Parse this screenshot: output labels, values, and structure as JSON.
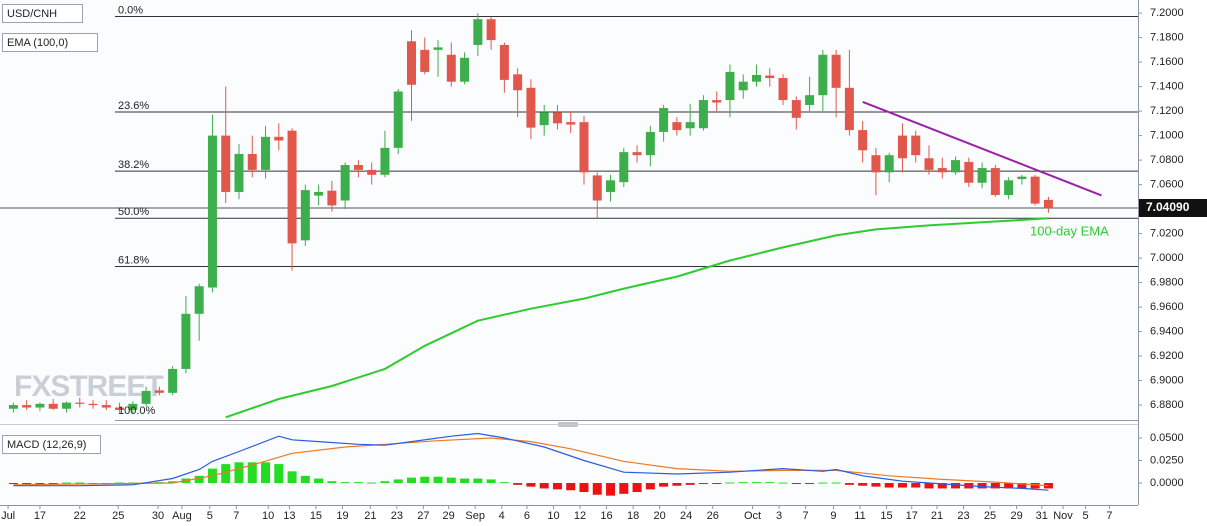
{
  "chart_data": [
    {
      "type": "candlestick",
      "title": "USD/CNH",
      "indicator_label": "EMA (100,0)",
      "watermark": "FXSTREET",
      "xlim": [
        -1.01,
        84.75
      ],
      "ylim": [
        6.867,
        7.2107
      ],
      "yticks": [
        {
          "value": 6.88,
          "label": "6.8800"
        },
        {
          "value": 6.9,
          "label": "6.9000"
        },
        {
          "value": 6.92,
          "label": "6.9200"
        },
        {
          "value": 6.94,
          "label": "6.9400"
        },
        {
          "value": 6.96,
          "label": "6.9600"
        },
        {
          "value": 6.98,
          "label": "6.9800"
        },
        {
          "value": 7.0,
          "label": "7.0000"
        },
        {
          "value": 7.02,
          "label": "7.0200"
        },
        {
          "value": 7.04,
          "label": "7.0400"
        },
        {
          "value": 7.06,
          "label": "7.0600"
        },
        {
          "value": 7.08,
          "label": "7.0800"
        },
        {
          "value": 7.1,
          "label": "7.1000"
        },
        {
          "value": 7.12,
          "label": "7.1200"
        },
        {
          "value": 7.14,
          "label": "7.1400"
        },
        {
          "value": 7.16,
          "label": "7.1600"
        },
        {
          "value": 7.18,
          "label": "7.1800"
        },
        {
          "value": 7.2,
          "label": "7.2000"
        }
      ],
      "up_color": "#3dae4c",
      "down_color": "#e2574c",
      "candles": {
        "open": [
          6.877,
          6.88,
          6.878,
          6.881,
          6.877,
          6.882,
          6.881,
          6.88,
          6.878,
          6.876,
          6.881,
          6.892,
          6.89,
          6.9095,
          6.9545,
          6.976,
          7.1,
          7.054,
          7.085,
          7.072,
          7.099,
          7.104,
          7.0145,
          7.051,
          7.055,
          7.047,
          7.076,
          7.072,
          7.068,
          7.09,
          7.177,
          7.17,
          7.17,
          7.166,
          7.144,
          7.174,
          7.195,
          7.174,
          7.15,
          7.139,
          7.1085,
          7.119,
          7.111,
          7.111,
          7.0675,
          7.054,
          7.062,
          7.0865,
          7.084,
          7.103,
          7.111,
          7.106,
          7.106,
          7.129,
          7.129,
          7.137,
          7.144,
          7.149,
          7.147,
          7.129,
          7.125,
          7.133,
          7.166,
          7.139,
          7.1045,
          7.084,
          7.07,
          7.1,
          7.1,
          7.0815,
          7.0735,
          7.07,
          7.0785,
          7.0615,
          7.0735,
          7.0515,
          7.0645,
          7.0665,
          7.0475
        ],
        "high": [
          6.882,
          6.884,
          6.882,
          6.885,
          6.883,
          6.886,
          6.884,
          6.884,
          6.882,
          6.883,
          6.895,
          6.895,
          6.912,
          6.969,
          6.979,
          7.117,
          7.14,
          7.093,
          7.1,
          7.108,
          7.11,
          7.106,
          7.06,
          7.06,
          7.063,
          7.078,
          7.08,
          7.078,
          7.104,
          7.138,
          7.186,
          7.18,
          7.178,
          7.176,
          7.168,
          7.2,
          7.197,
          7.176,
          7.155,
          7.146,
          7.125,
          7.125,
          7.12,
          7.116,
          7.07,
          7.068,
          7.09,
          7.092,
          7.108,
          7.125,
          7.115,
          7.126,
          7.133,
          7.136,
          7.158,
          7.15,
          7.158,
          7.155,
          7.15,
          7.132,
          7.148,
          7.17,
          7.17,
          7.17,
          7.112,
          7.09,
          7.086,
          7.11,
          7.104,
          7.092,
          7.082,
          7.083,
          7.082,
          7.078,
          7.076,
          7.066,
          7.068,
          7.068,
          7.05
        ],
        "low": [
          6.874,
          6.876,
          6.875,
          6.876,
          6.874,
          6.878,
          6.877,
          6.876,
          6.874,
          6.873,
          6.879,
          6.888,
          6.888,
          6.906,
          6.9325,
          6.972,
          7.045,
          7.048,
          7.066,
          7.065,
          7.088,
          6.9898,
          7.01,
          7.043,
          7.038,
          7.04,
          7.066,
          7.06,
          7.066,
          7.085,
          7.112,
          7.15,
          7.148,
          7.14,
          7.142,
          7.165,
          7.17,
          7.135,
          7.115,
          7.097,
          7.1,
          7.105,
          7.102,
          7.06,
          7.0325,
          7.046,
          7.058,
          7.078,
          7.075,
          7.095,
          7.1,
          7.1,
          7.104,
          7.12,
          7.115,
          7.13,
          7.14,
          7.14,
          7.125,
          7.105,
          7.12,
          7.12,
          7.115,
          7.1,
          7.078,
          7.0513,
          7.062,
          7.07,
          7.078,
          7.068,
          7.065,
          7.068,
          7.058,
          7.057,
          7.05,
          7.048,
          7.06,
          7.043,
          7.037
        ],
        "close": [
          6.88,
          6.878,
          6.881,
          6.877,
          6.882,
          6.881,
          6.88,
          6.878,
          6.876,
          6.881,
          6.8915,
          6.89,
          6.9095,
          6.9545,
          6.977,
          7.1,
          7.054,
          7.085,
          7.072,
          7.099,
          7.096,
          7.012,
          7.0555,
          7.054,
          7.043,
          7.076,
          7.072,
          7.068,
          7.09,
          7.136,
          7.1415,
          7.152,
          7.172,
          7.144,
          7.1635,
          7.195,
          7.178,
          7.1455,
          7.137,
          7.1065,
          7.119,
          7.11,
          7.109,
          7.07,
          7.047,
          7.0635,
          7.0865,
          7.084,
          7.103,
          7.1225,
          7.1045,
          7.111,
          7.129,
          7.127,
          7.152,
          7.144,
          7.1495,
          7.147,
          7.129,
          7.1145,
          7.133,
          7.166,
          7.139,
          7.1045,
          7.088,
          7.07,
          7.084,
          7.0815,
          7.084,
          7.072,
          7.07,
          7.08,
          7.0615,
          7.0735,
          7.0515,
          7.0635,
          7.0665,
          7.0445,
          7.0409
        ]
      },
      "ema": {
        "color": "#2ecc2e",
        "x": [
          16,
          20,
          24,
          28,
          31,
          35,
          39,
          43,
          46,
          50,
          54,
          58,
          62,
          65,
          69,
          73,
          78
        ],
        "values": [
          6.87,
          6.885,
          6.8956,
          6.9095,
          6.9284,
          6.9489,
          6.9587,
          6.9669,
          6.9751,
          6.9849,
          6.998,
          7.0087,
          7.0185,
          7.0234,
          7.0267,
          7.0292,
          7.0325
        ]
      },
      "ema_annotation": "100-day EMA",
      "trendline": {
        "color": "#9b1fa8",
        "x": [
          64,
          82
        ],
        "values": [
          7.1275,
          7.0512
        ]
      },
      "fib_levels": [
        {
          "label": "0.0%",
          "value": 7.1972
        },
        {
          "label": "23.6%",
          "value": 7.1193
        },
        {
          "label": "38.2%",
          "value": 7.071
        },
        {
          "label": "50.0%",
          "value": 7.0325
        },
        {
          "label": "61.8%",
          "value": 6.9931
        },
        {
          "label": "100.0%",
          "value": 6.867
        }
      ],
      "last_price": {
        "value": 7.0409,
        "label": "7.04090"
      }
    },
    {
      "type": "macd",
      "title": "MACD (12,26,9)",
      "xlim": [
        -1.01,
        84.75
      ],
      "xticks": [
        {
          "value": -0.4,
          "label": "Jul"
        },
        {
          "value": 2.0,
          "label": "17"
        },
        {
          "value": 5.0,
          "label": "22"
        },
        {
          "value": 7.9,
          "label": "25"
        },
        {
          "value": 10.9,
          "label": "30"
        },
        {
          "value": 12.7,
          "label": "Aug"
        },
        {
          "value": 14.8,
          "label": "5"
        },
        {
          "value": 16.8,
          "label": "7"
        },
        {
          "value": 19.2,
          "label": "10"
        },
        {
          "value": 20.8,
          "label": "13"
        },
        {
          "value": 22.8,
          "label": "15"
        },
        {
          "value": 24.8,
          "label": "19"
        },
        {
          "value": 26.9,
          "label": "21"
        },
        {
          "value": 28.9,
          "label": "23"
        },
        {
          "value": 30.9,
          "label": "27"
        },
        {
          "value": 32.8,
          "label": "29"
        },
        {
          "value": 34.8,
          "label": "Sep"
        },
        {
          "value": 36.8,
          "label": "4"
        },
        {
          "value": 38.7,
          "label": "6"
        },
        {
          "value": 40.7,
          "label": "10"
        },
        {
          "value": 42.7,
          "label": "12"
        },
        {
          "value": 44.7,
          "label": "16"
        },
        {
          "value": 46.7,
          "label": "18"
        },
        {
          "value": 48.7,
          "label": "20"
        },
        {
          "value": 50.7,
          "label": "24"
        },
        {
          "value": 52.7,
          "label": "26"
        },
        {
          "value": 55.7,
          "label": "Oct"
        },
        {
          "value": 57.7,
          "label": "3"
        },
        {
          "value": 59.7,
          "label": "7"
        },
        {
          "value": 61.8,
          "label": "9"
        },
        {
          "value": 63.8,
          "label": "11"
        },
        {
          "value": 65.8,
          "label": "15"
        },
        {
          "value": 67.7,
          "label": "17"
        },
        {
          "value": 69.6,
          "label": "21"
        },
        {
          "value": 71.6,
          "label": "23"
        },
        {
          "value": 73.6,
          "label": "25"
        },
        {
          "value": 75.6,
          "label": "29"
        },
        {
          "value": 77.5,
          "label": "31"
        },
        {
          "value": 79.1,
          "label": "Nov"
        },
        {
          "value": 80.8,
          "label": "5"
        },
        {
          "value": 82.6,
          "label": "7"
        }
      ],
      "ylim": [
        -0.0244,
        0.0611
      ],
      "yticks": [
        {
          "value": 0.05,
          "label": "0.0500"
        },
        {
          "value": 0.025,
          "label": "0.0250"
        },
        {
          "value": 0,
          "label": "0.0000"
        }
      ],
      "histogram": {
        "up_color": "#22dd22",
        "down_color": "#ee1111",
        "values": [
          -0.001,
          -0.001,
          -0.0005,
          -0.0005,
          0,
          0,
          -0.0005,
          -0.0005,
          0,
          0,
          0.0005,
          0.001,
          0.002,
          0.005,
          0.008,
          0.016,
          0.021,
          0.023,
          0.023,
          0.023,
          0.021,
          0.013,
          0.008,
          0.005,
          0.002,
          0.001,
          0.001,
          0.0005,
          0.002,
          0.004,
          0.006,
          0.007,
          0.007,
          0.006,
          0.005,
          0.005,
          0.004,
          0.001,
          -0.002,
          -0.004,
          -0.006,
          -0.007,
          -0.008,
          -0.01,
          -0.013,
          -0.014,
          -0.012,
          -0.01,
          -0.007,
          -0.004,
          -0.003,
          -0.002,
          -0.001,
          -0.001,
          0,
          0.001,
          0.001,
          0.001,
          0.0005,
          -0.0005,
          -0.0005,
          0.0005,
          0,
          -0.002,
          -0.003,
          -0.004,
          -0.005,
          -0.005,
          -0.005,
          -0.006,
          -0.006,
          -0.006,
          -0.006,
          -0.006,
          -0.006,
          -0.006,
          -0.006,
          -0.006,
          -0.006
        ]
      },
      "macd_line": {
        "color": "#2a5ce0",
        "x": [
          0,
          5,
          9,
          12,
          14,
          15,
          17,
          20,
          21,
          23,
          26,
          28,
          30,
          33,
          35,
          37,
          40,
          43,
          46,
          50,
          54,
          58,
          61,
          62,
          64,
          67,
          70,
          73,
          76,
          78
        ],
        "values": [
          -0.003,
          -0.003,
          -0.002,
          0.005,
          0.015,
          0.024,
          0.035,
          0.052,
          0.048,
          0.046,
          0.043,
          0.042,
          0.046,
          0.052,
          0.055,
          0.05,
          0.04,
          0.025,
          0.012,
          0.01,
          0.012,
          0.016,
          0.013,
          0.015,
          0.008,
          0.002,
          -0.001,
          -0.004,
          -0.006,
          -0.008
        ]
      },
      "signal_line": {
        "color": "#f07a1e",
        "x": [
          0,
          12,
          15,
          18,
          21,
          25,
          28,
          32,
          36,
          39,
          42,
          46,
          50,
          54,
          58,
          62,
          66,
          70,
          74,
          78
        ],
        "values": [
          -0.002,
          0.0,
          0.008,
          0.02,
          0.033,
          0.04,
          0.043,
          0.047,
          0.05,
          0.046,
          0.038,
          0.024,
          0.016,
          0.013,
          0.014,
          0.014,
          0.008,
          0.004,
          0.001,
          -0.003
        ]
      }
    }
  ]
}
